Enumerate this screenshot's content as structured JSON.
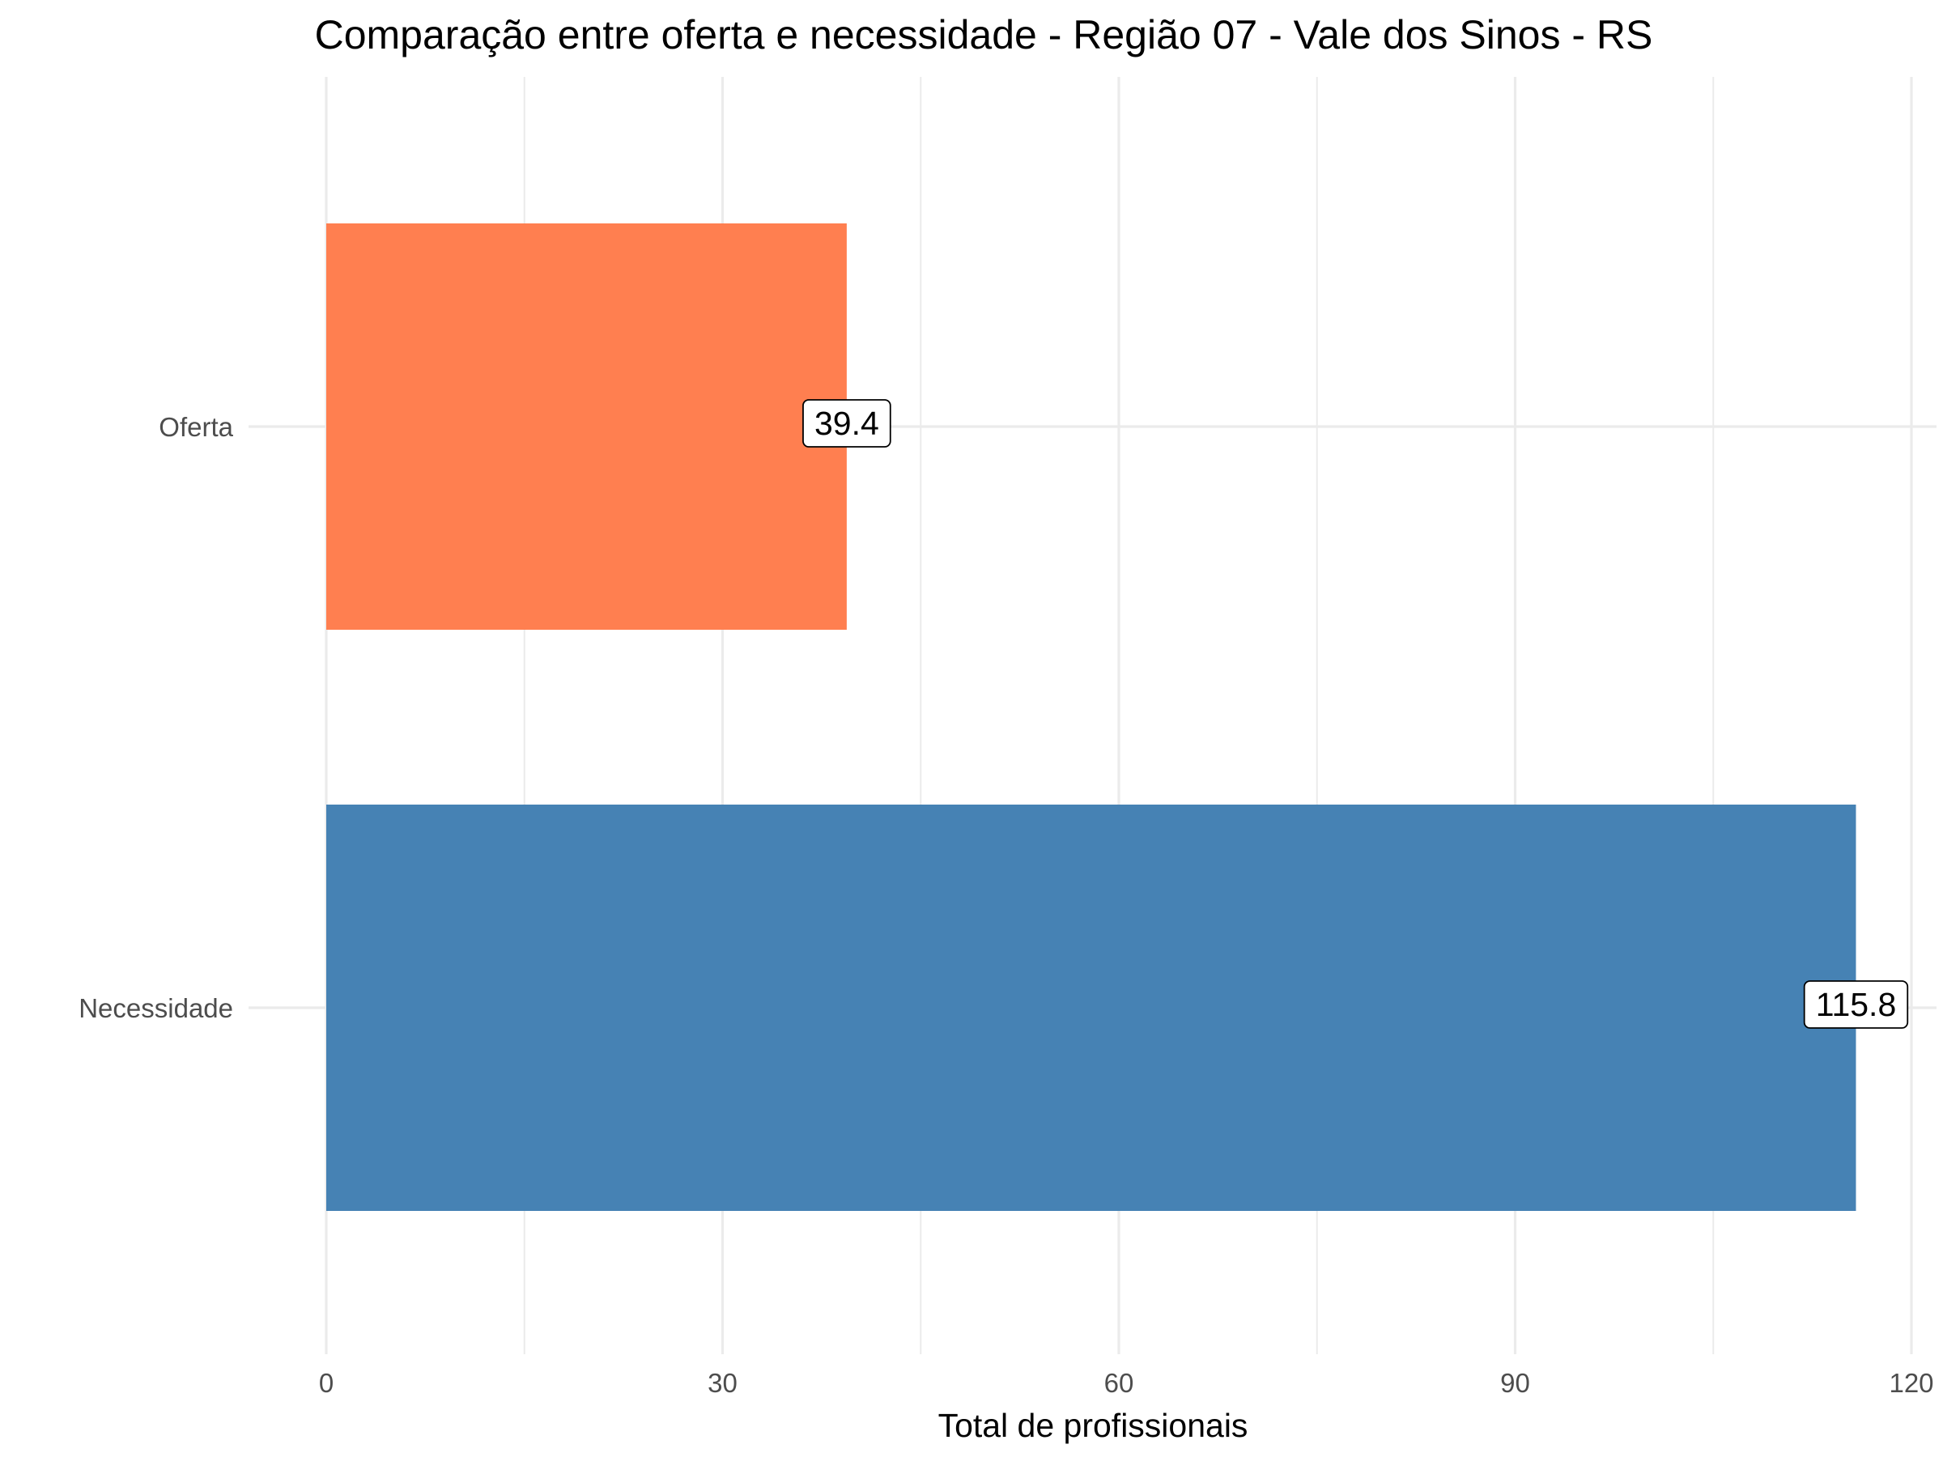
{
  "chart_data": {
    "type": "bar",
    "orientation": "horizontal",
    "title": "Comparação entre oferta e necessidade - Região 07 - Vale dos Sinos - RS",
    "xlabel": "Total de profissionais",
    "ylabel": "",
    "categories": [
      "Oferta",
      "Necessidade"
    ],
    "values": [
      39.4,
      115.8
    ],
    "data_labels": [
      "39.4",
      "115.8"
    ],
    "colors": [
      "#FF7F50",
      "#4682B4"
    ],
    "xlim": [
      0,
      120
    ],
    "x_ticks": [
      0,
      30,
      60,
      90,
      120
    ],
    "x_tick_labels": [
      "0",
      "30",
      "60",
      "90",
      "120"
    ],
    "grid": true,
    "legend": "none"
  }
}
